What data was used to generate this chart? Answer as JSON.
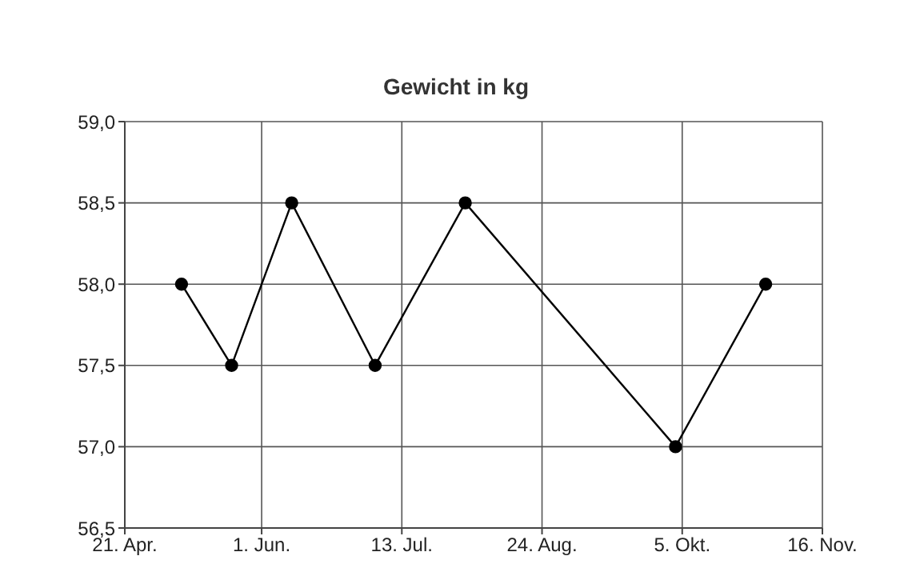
{
  "chart_data": {
    "type": "line",
    "title": "Gewicht in kg",
    "x": [
      "--05-08",
      "--05-23",
      "--06-10",
      "--07-05",
      "--08-01",
      "--10-03",
      "--10-30"
    ],
    "series": [
      {
        "color": "#000000",
        "values": [
          58.0,
          57.5,
          58.5,
          57.5,
          58.5,
          57.0,
          58.0
        ]
      }
    ],
    "xlim": [
      "--04-21",
      "--11-16"
    ],
    "xticks": [
      {
        "value": "--04-21",
        "label": "21. Apr."
      },
      {
        "value": "--06-01",
        "label": "1. Jun."
      },
      {
        "value": "--07-13",
        "label": "13. Jul."
      },
      {
        "value": "--08-24",
        "label": "24. Aug."
      },
      {
        "value": "--10-05",
        "label": "5. Okt."
      },
      {
        "value": "--11-16",
        "label": "16. Nov."
      }
    ],
    "ylim": [
      56.5,
      59.0
    ],
    "yticks": [
      {
        "value": 56.5,
        "label": "56,5"
      },
      {
        "value": 57.0,
        "label": "57,0"
      },
      {
        "value": 57.5,
        "label": "57,5"
      },
      {
        "value": 58.0,
        "label": "58,0"
      },
      {
        "value": 58.5,
        "label": "58,5"
      },
      {
        "value": 59.0,
        "label": "59,0"
      }
    ],
    "grid": true,
    "marker": "circle",
    "line_style": "solid",
    "legend": false
  }
}
